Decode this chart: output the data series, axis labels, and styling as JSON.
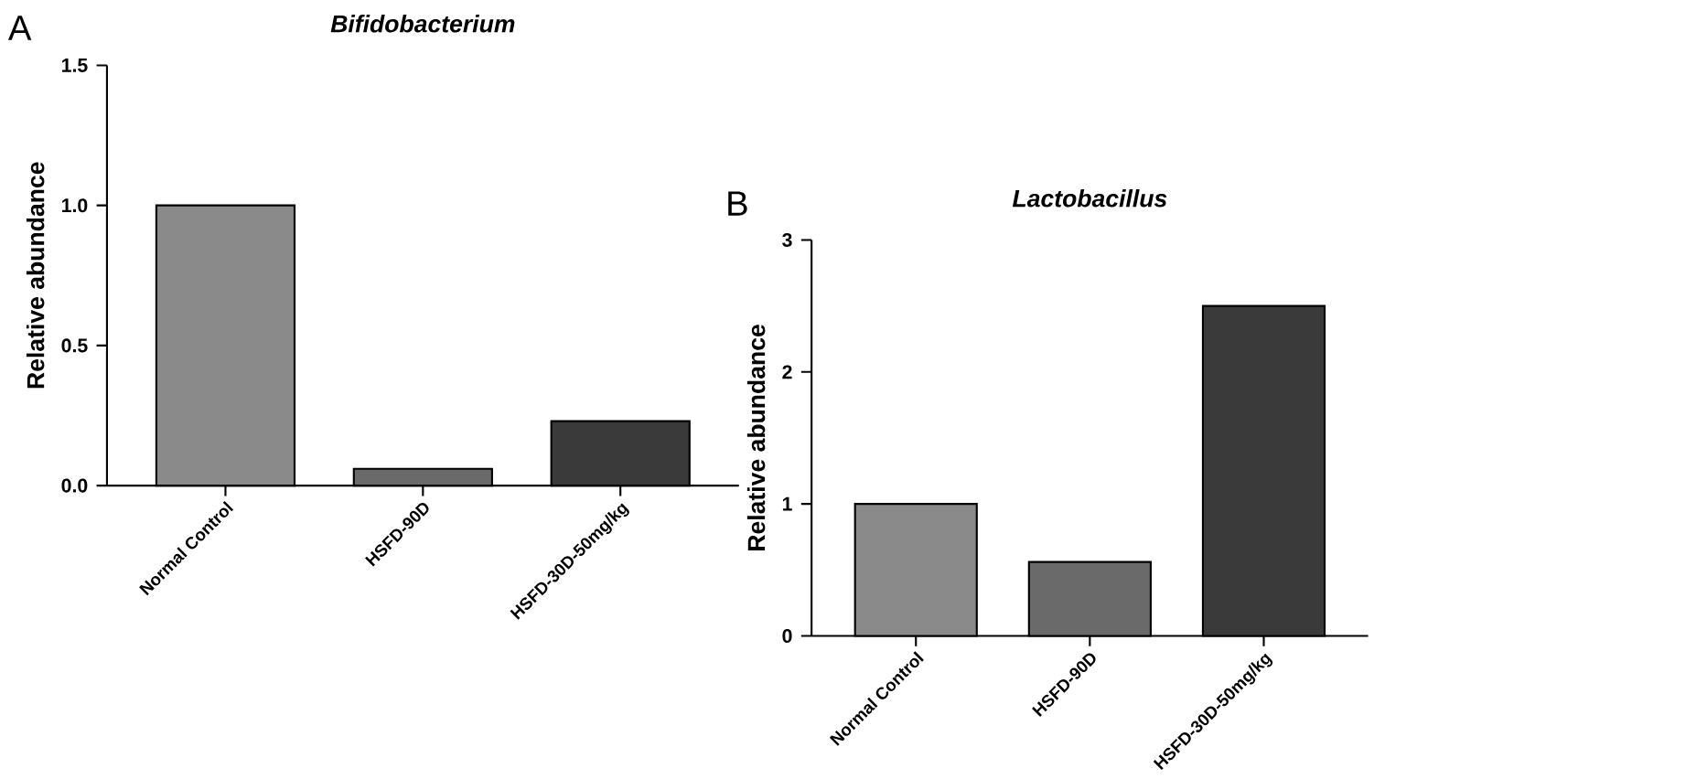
{
  "chart_data": [
    {
      "type": "bar",
      "title": "Bifidobacterium",
      "ylabel": "Relative abundance",
      "annotations": [
        "A"
      ],
      "categories": [
        "Normal Control",
        "HSFD-90D",
        "HSFD-30D-50mg/kg"
      ],
      "values": [
        1.0,
        0.06,
        0.23
      ],
      "colors": [
        "#8a8a8a",
        "#6a6a6a",
        "#3a3a3a"
      ],
      "ylim": [
        0,
        1.5
      ],
      "yticks": [
        {
          "value": 0,
          "label": "0.0"
        },
        {
          "value": 0.5,
          "label": "0.5"
        },
        {
          "value": 1,
          "label": "1.0"
        },
        {
          "value": 1.5,
          "label": "1.5"
        }
      ]
    },
    {
      "type": "bar",
      "title": "Lactobacillus",
      "ylabel": "Relative abundance",
      "annotations": [
        "B"
      ],
      "categories": [
        "Normal Control",
        "HSFD-90D",
        "HSFD-30D-50mg/kg"
      ],
      "values": [
        1.0,
        0.56,
        2.5
      ],
      "colors": [
        "#8a8a8a",
        "#6a6a6a",
        "#3a3a3a"
      ],
      "ylim": [
        0,
        3
      ],
      "yticks": [
        0,
        1,
        2,
        3
      ]
    }
  ]
}
